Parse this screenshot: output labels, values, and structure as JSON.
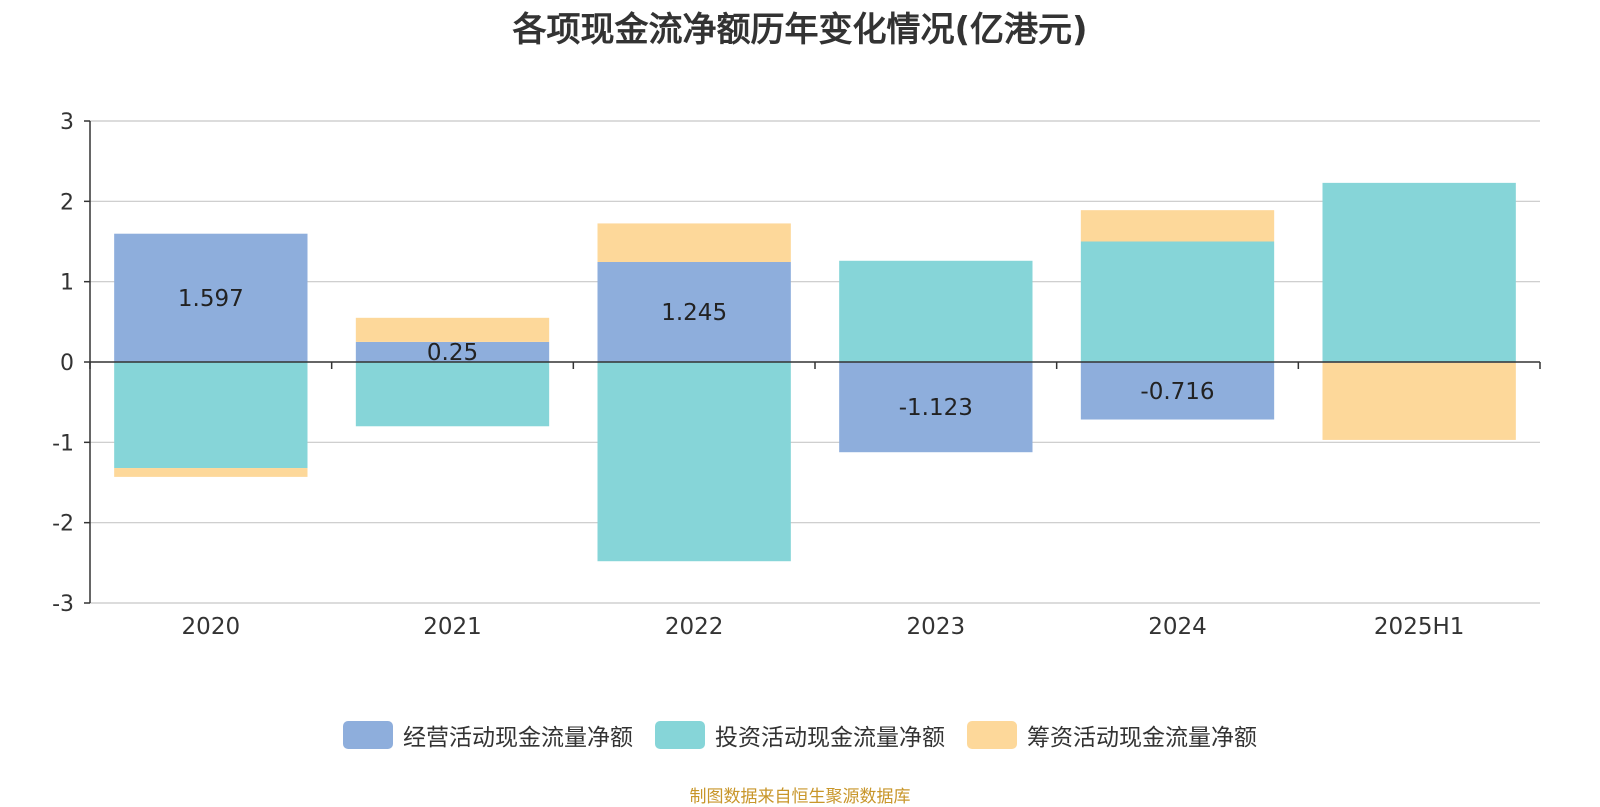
{
  "title": "各项现金流净额历年变化情况(亿港元)",
  "source": "制图数据来自恒生聚源数据库",
  "colors": {
    "operating": "#8eaedc",
    "investing": "#86d5d8",
    "financing": "#fdd89a",
    "grid": "#c8c8c8",
    "axis": "#333333",
    "text": "#333333"
  },
  "chart_data": {
    "type": "bar",
    "stacked": true,
    "categories": [
      "2020",
      "2021",
      "2022",
      "2023",
      "2024",
      "2025H1"
    ],
    "series": [
      {
        "name": "经营活动现金流量净额",
        "color_key": "operating",
        "values": [
          1.597,
          0.25,
          1.245,
          -1.123,
          -0.716,
          -0.01
        ],
        "labels": [
          "1.597",
          "0.25",
          "1.245",
          "-1.123",
          "-0.716",
          ""
        ]
      },
      {
        "name": "投资活动现金流量净额",
        "color_key": "investing",
        "values": [
          -1.32,
          -0.8,
          -2.48,
          1.26,
          1.5,
          2.23
        ]
      },
      {
        "name": "筹资活动现金流量净额",
        "color_key": "financing",
        "values": [
          -0.11,
          0.3,
          0.48,
          0.0,
          0.39,
          -0.96
        ]
      }
    ],
    "ylim": [
      -3,
      3
    ],
    "yticks": [
      -3,
      -2,
      -1,
      0,
      1,
      2,
      3
    ],
    "grid": true,
    "legend": "bottom"
  }
}
